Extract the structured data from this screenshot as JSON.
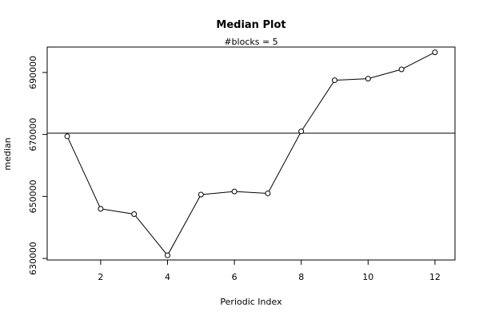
{
  "chart_data": {
    "type": "line",
    "title": "Median Plot",
    "subtitle": "#blocks =  5",
    "xlabel": "Periodic Index",
    "ylabel": "median",
    "x": [
      1,
      2,
      3,
      4,
      5,
      6,
      7,
      8,
      9,
      10,
      11,
      12
    ],
    "values": [
      669400,
      646000,
      644300,
      631000,
      650600,
      651600,
      651000,
      671000,
      687500,
      688000,
      691000,
      696500
    ],
    "reference_line": 670400,
    "xlim": [
      0.4,
      12.6
    ],
    "ylim": [
      629500,
      698200
    ],
    "xticks": [
      2,
      4,
      6,
      8,
      10,
      12
    ],
    "yticks": [
      630000,
      650000,
      670000,
      690000
    ],
    "ytick_labels": [
      "630000",
      "650000",
      "670000",
      "690000"
    ],
    "xtick_labels": [
      "2",
      "4",
      "6",
      "8",
      "10",
      "12"
    ],
    "grid": false,
    "marker": "open-circle",
    "line_color": "#000000"
  }
}
